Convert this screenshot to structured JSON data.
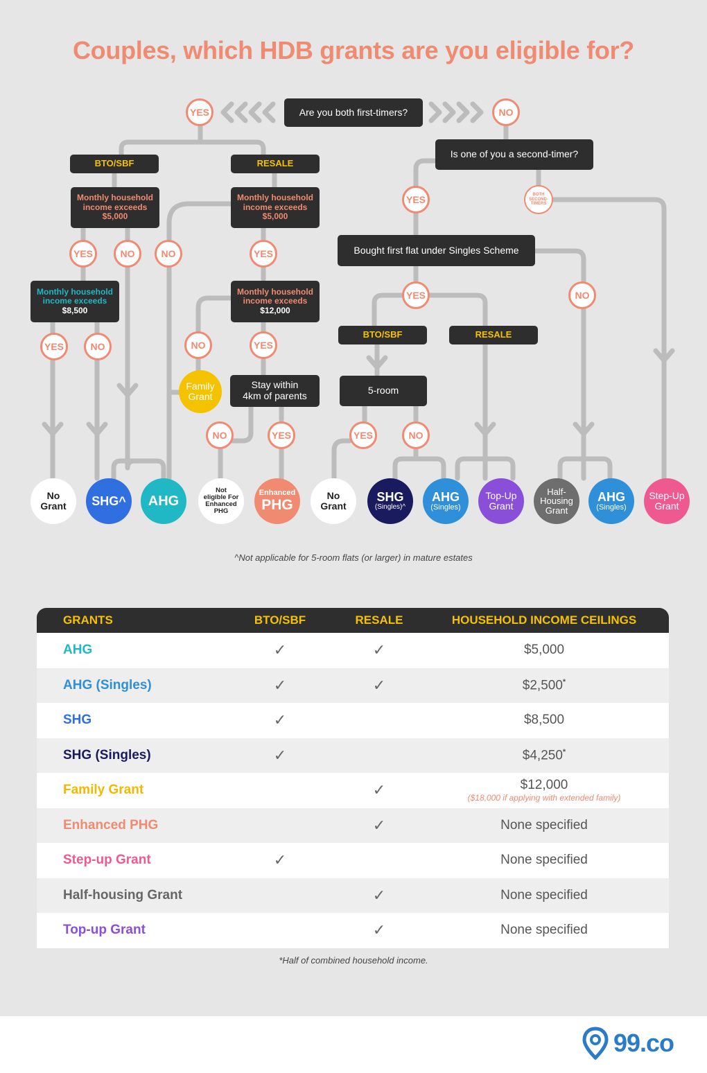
{
  "title": "Couples, which HDB grants are you eligible for?",
  "flow": {
    "q_first_timers": "Are you both first-timers?",
    "q_second_timer": "Is one of you a second-timer?",
    "yes": "YES",
    "no": "NO",
    "both_second_timers": "BOTH SECOND-TIMERS",
    "bto_sbf": "BTO/SBF",
    "resale": "RESALE",
    "income_5000_line1": "Monthly household",
    "income_5000_line2": "income exceeds",
    "income_5000_line3": "$5,000",
    "income_8500_line3": "$8,500",
    "income_12000_line3": "$12,000",
    "q_singles_scheme": "Bought first flat under Singles Scheme",
    "q_stay_4km_line1": "Stay within",
    "q_stay_4km_line2": "4km of parents",
    "q_5room": "5-room",
    "family_grant_line1": "Family",
    "family_grant_line2": "Grant"
  },
  "results": {
    "no_grant_a": "No",
    "no_grant_b": "Grant",
    "shg": "SHG^",
    "ahg": "AHG",
    "not_eligible_1": "Not",
    "not_eligible_2": "eligible For",
    "not_eligible_3": "Enhanced",
    "not_eligible_4": "PHG",
    "enhanced": "Enhanced",
    "phg": "PHG",
    "shg_s": "SHG",
    "singles_caret": "(Singles)^",
    "singles": "(Singles)",
    "topup_a": "Top-Up",
    "topup_b": "Grant",
    "half_a": "Half-",
    "half_b": "Housing",
    "half_c": "Grant",
    "stepup_a": "Step-Up",
    "stepup_b": "Grant"
  },
  "footnote_flow": "^Not applicable for 5-room flats (or larger) in mature estates",
  "table": {
    "headers": [
      "GRANTS",
      "BTO/SBF",
      "RESALE",
      "HOUSEHOLD INCOME CEILINGS"
    ],
    "check": "✓",
    "rows": [
      {
        "grant": "AHG",
        "bto": "✓",
        "resale": "✓",
        "ceiling": "$5,000",
        "mark": "",
        "color": "#1fb8c4"
      },
      {
        "grant": "AHG (Singles)",
        "bto": "✓",
        "resale": "✓",
        "ceiling": "$2,500",
        "mark": "*",
        "color": "#2f8fd8"
      },
      {
        "grant": "SHG",
        "bto": "✓",
        "resale": "",
        "ceiling": "$8,500",
        "mark": "",
        "color": "#2f6fe0"
      },
      {
        "grant": "SHG (Singles)",
        "bto": "✓",
        "resale": "",
        "ceiling": "$4,250",
        "mark": "*",
        "color": "#1a1a5e"
      },
      {
        "grant": "Family Grant",
        "bto": "",
        "resale": "✓",
        "ceiling": "$12,000",
        "mark": "",
        "note": "($18,000 if applying with extended family)",
        "color": "#f5b800"
      },
      {
        "grant": "Enhanced PHG",
        "bto": "",
        "resale": "✓",
        "ceiling": "None specified",
        "mark": "",
        "color": "#f08a70"
      },
      {
        "grant": "Step-up Grant",
        "bto": "✓",
        "resale": "",
        "ceiling": "None specified",
        "mark": "",
        "color": "#ee5a8f"
      },
      {
        "grant": "Half-housing Grant",
        "bto": "",
        "resale": "✓",
        "ceiling": "None specified",
        "mark": "",
        "color": "#666666"
      },
      {
        "grant": "Top-up Grant",
        "bto": "",
        "resale": "✓",
        "ceiling": "None specified",
        "mark": "",
        "color": "#8a4fd8"
      }
    ]
  },
  "footnote_table": "*Half of combined household income.",
  "logo": "99.co",
  "colors": {
    "accent": "#f08a70",
    "box": "#2e2e2e",
    "label": "#f5c200",
    "connector": "#bdbdbd"
  }
}
